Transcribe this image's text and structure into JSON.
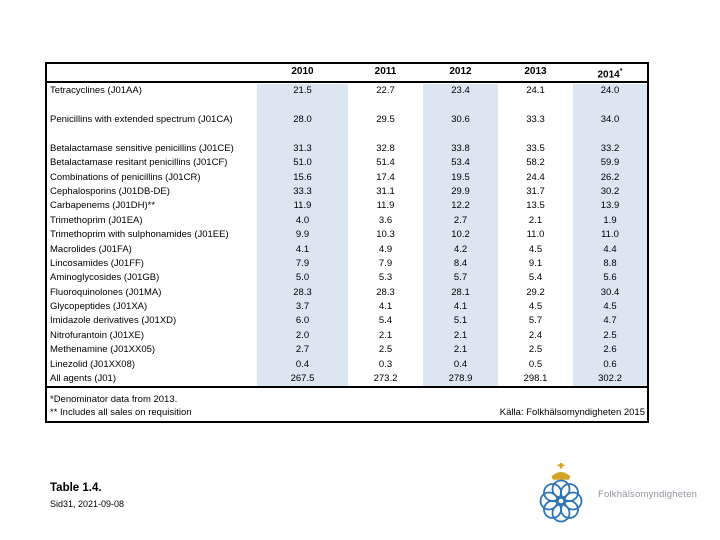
{
  "table": {
    "columns": [
      {
        "label": "2010",
        "sup": ""
      },
      {
        "label": "2011",
        "sup": ""
      },
      {
        "label": "2012",
        "sup": ""
      },
      {
        "label": "2013",
        "sup": ""
      },
      {
        "label": "2014",
        "sup": "*"
      }
    ],
    "shaded_columns": [
      0,
      2,
      4
    ],
    "shade_color": "#dce6f1",
    "rows": [
      {
        "label": "Tetracyclines (J01AA)",
        "values": [
          "21.5",
          "22.7",
          "23.4",
          "24.1",
          "24.0"
        ],
        "gap_after": true
      },
      {
        "label": "Penicillins with extended spectrum (J01CA)",
        "values": [
          "28.0",
          "29.5",
          "30.6",
          "33.3",
          "34.0"
        ],
        "gap_after": true
      },
      {
        "label": "Betalactamase sensitive penicillins (J01CE)",
        "values": [
          "31.3",
          "32.8",
          "33.8",
          "33.5",
          "33.2"
        ],
        "gap_after": false
      },
      {
        "label": "Betalactamase resitant penicillins (J01CF)",
        "values": [
          "51.0",
          "51.4",
          "53.4",
          "58.2",
          "59.9"
        ],
        "gap_after": false
      },
      {
        "label": "Combinations of penicillins (J01CR)",
        "values": [
          "15.6",
          "17.4",
          "19.5",
          "24.4",
          "26.2"
        ],
        "gap_after": false
      },
      {
        "label": "Cephalosporins (J01DB-DE)",
        "values": [
          "33.3",
          "31.1",
          "29.9",
          "31.7",
          "30.2"
        ],
        "gap_after": false
      },
      {
        "label": "Carbapenems (J01DH)**",
        "values": [
          "11.9",
          "11.9",
          "12.2",
          "13.5",
          "13.9"
        ],
        "gap_after": false
      },
      {
        "label": "Trimethoprim (J01EA)",
        "values": [
          "4.0",
          "3.6",
          "2.7",
          "2.1",
          "1.9"
        ],
        "gap_after": false
      },
      {
        "label": "Trimethoprim with sulphonamides (J01EE)",
        "values": [
          "9.9",
          "10.3",
          "10.2",
          "11.0",
          "11.0"
        ],
        "gap_after": false
      },
      {
        "label": "Macrolides (J01FA)",
        "values": [
          "4.1",
          "4.9",
          "4.2",
          "4.5",
          "4.4"
        ],
        "gap_after": false
      },
      {
        "label": "Lincosamides (J01FF)",
        "values": [
          "7.9",
          "7.9",
          "8.4",
          "9.1",
          "8.8"
        ],
        "gap_after": false
      },
      {
        "label": "Aminoglycosides (J01GB)",
        "values": [
          "5.0",
          "5.3",
          "5.7",
          "5.4",
          "5.6"
        ],
        "gap_after": false
      },
      {
        "label": "Fluoroquinolones (J01MA)",
        "values": [
          "28.3",
          "28.3",
          "28.1",
          "29.2",
          "30.4"
        ],
        "gap_after": false
      },
      {
        "label": "Glycopeptides (J01XA)",
        "values": [
          "3.7",
          "4.1",
          "4.1",
          "4.5",
          "4.5"
        ],
        "gap_after": false
      },
      {
        "label": "Imidazole derivatives (J01XD)",
        "values": [
          "6.0",
          "5.4",
          "5.1",
          "5.7",
          "4.7"
        ],
        "gap_after": false
      },
      {
        "label": "Nitrofurantoin (J01XE)",
        "values": [
          "2.0",
          "2.1",
          "2.1",
          "2.4",
          "2.5"
        ],
        "gap_after": false
      },
      {
        "label": "Methenamine (J01XX05)",
        "values": [
          "2.7",
          "2.5",
          "2.1",
          "2.5",
          "2.6"
        ],
        "gap_after": false
      },
      {
        "label": "Linezolid (J01XX08)",
        "values": [
          "0.4",
          "0.3",
          "0.4",
          "0.5",
          "0.6"
        ],
        "gap_after": false
      },
      {
        "label": "All agents (J01)",
        "values": [
          "267.5",
          "273.2",
          "278.9",
          "298.1",
          "302.2"
        ],
        "gap_after": false
      }
    ],
    "footnotes": [
      "*Denominator data from 2013.",
      "** Includes all sales on requisition"
    ],
    "source": "Källa: Folkhälsomyndigheten 2015"
  },
  "footer": {
    "title": "Table 1.4.",
    "subtitle": "Sid31, 2021-09-08"
  },
  "logo": {
    "text": "Folkhälsomyndigheten",
    "blue": "#2e74b5",
    "gold": "#d2a327",
    "text_color": "#8f959c"
  }
}
